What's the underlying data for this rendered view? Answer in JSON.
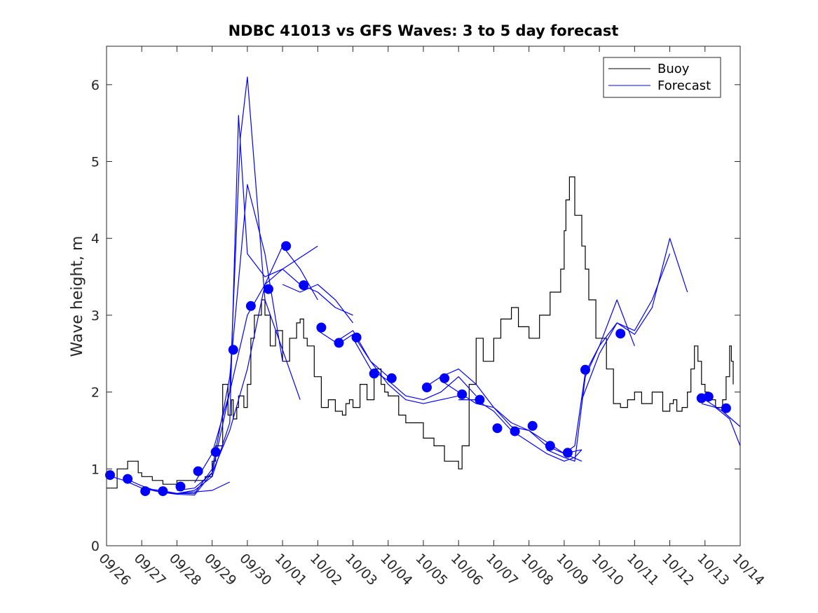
{
  "chart_data": {
    "type": "line",
    "title": "NDBC 41013 vs GFS Waves: 3 to 5 day forecast",
    "xlabel": "",
    "ylabel": "Wave height, m",
    "xlim": [
      0,
      18
    ],
    "ylim": [
      0,
      6.5
    ],
    "x_unit": "days since 09/26",
    "xtick_labels": [
      "09/26",
      "09/27",
      "09/28",
      "09/29",
      "09/30",
      "10/01",
      "10/02",
      "10/03",
      "10/04",
      "10/05",
      "10/06",
      "10/07",
      "10/08",
      "10/09",
      "10/10",
      "10/11",
      "10/12",
      "10/13",
      "10/14"
    ],
    "ytick_values": [
      0,
      1,
      2,
      3,
      4,
      5,
      6
    ],
    "ytick_labels": [
      "0",
      "1",
      "2",
      "3",
      "4",
      "5",
      "6"
    ],
    "legend_position": "top-right",
    "legend": [
      {
        "name": "Buoy",
        "color": "#000000"
      },
      {
        "name": "Forecast",
        "color": "#0000ff"
      }
    ],
    "buoy": {
      "name": "Buoy",
      "color": "#000000",
      "x": [
        0,
        0.3,
        0.6,
        0.9,
        1.0,
        1.3,
        1.6,
        2.0,
        2.4,
        2.8,
        3.0,
        3.1,
        3.3,
        3.45,
        3.55,
        3.6,
        3.7,
        3.75,
        3.9,
        4.0,
        4.1,
        4.2,
        4.4,
        4.5,
        4.65,
        4.8,
        5.0,
        5.2,
        5.4,
        5.5,
        5.6,
        5.7,
        5.9,
        6.1,
        6.3,
        6.5,
        6.7,
        6.8,
        6.9,
        7.0,
        7.2,
        7.4,
        7.6,
        7.8,
        7.9,
        8.0,
        8.3,
        8.5,
        8.8,
        9.0,
        9.3,
        9.6,
        10.0,
        10.1,
        10.3,
        10.5,
        10.7,
        11.0,
        11.2,
        11.5,
        11.7,
        12.0,
        12.3,
        12.6,
        12.9,
        13.0,
        13.05,
        13.15,
        13.3,
        13.5,
        13.6,
        13.7,
        13.9,
        14.2,
        14.4,
        14.6,
        14.8,
        15.0,
        15.2,
        15.5,
        15.8,
        16.0,
        16.1,
        16.2,
        16.35,
        16.5,
        16.6,
        16.7,
        16.8,
        16.9,
        17.0,
        17.1,
        17.3,
        17.5,
        17.6,
        17.7,
        17.75,
        17.8
      ],
      "y": [
        0.75,
        1.0,
        1.1,
        0.95,
        0.9,
        0.85,
        0.8,
        0.85,
        0.85,
        0.9,
        1.1,
        1.3,
        2.1,
        1.7,
        1.9,
        1.65,
        1.8,
        1.95,
        1.8,
        2.1,
        2.7,
        3.0,
        3.2,
        3.0,
        2.6,
        2.8,
        2.4,
        2.7,
        2.9,
        2.95,
        2.7,
        2.6,
        2.2,
        1.8,
        1.9,
        1.75,
        1.7,
        1.85,
        1.9,
        1.8,
        2.1,
        1.9,
        2.3,
        2.1,
        2.0,
        1.95,
        1.7,
        1.6,
        1.6,
        1.4,
        1.3,
        1.1,
        1.0,
        1.3,
        2.1,
        2.7,
        2.4,
        2.7,
        2.95,
        3.1,
        2.85,
        2.7,
        3.0,
        3.3,
        3.6,
        4.1,
        4.5,
        4.8,
        4.3,
        3.9,
        3.6,
        3.2,
        2.7,
        2.3,
        1.85,
        1.8,
        1.9,
        2.0,
        1.85,
        2.0,
        1.75,
        1.85,
        1.9,
        1.75,
        1.8,
        2.0,
        2.3,
        2.6,
        2.4,
        2.1,
        2.0,
        1.9,
        1.8,
        1.9,
        2.2,
        2.6,
        2.4,
        2.1
      ]
    },
    "forecast_lines": [
      {
        "x": [
          0,
          0.5,
          1,
          1.5,
          2,
          2.5,
          3,
          3.5
        ],
        "y": [
          0.92,
          0.85,
          0.75,
          0.72,
          0.68,
          0.7,
          0.72,
          0.83
        ]
      },
      {
        "x": [
          0.5,
          1,
          1.5,
          2,
          2.5,
          3,
          3.5,
          4,
          4.5,
          5
        ],
        "y": [
          0.88,
          0.78,
          0.7,
          0.68,
          0.68,
          1.0,
          2.2,
          4.7,
          3.8,
          2.4
        ]
      },
      {
        "x": [
          1,
          1.5,
          2,
          2.5,
          3,
          3.5,
          3.8,
          4,
          4.5,
          5.5
        ],
        "y": [
          0.75,
          0.7,
          0.67,
          0.66,
          0.95,
          2.0,
          5.3,
          6.1,
          3.2,
          1.9
        ]
      },
      {
        "x": [
          1.5,
          2,
          2.5,
          3,
          3.5,
          3.75,
          4,
          4.5,
          5,
          6
        ],
        "y": [
          0.72,
          0.68,
          0.72,
          0.9,
          1.6,
          5.6,
          3.8,
          3.5,
          3.6,
          3.9
        ]
      },
      {
        "x": [
          2,
          2.5,
          3,
          3.5,
          4,
          4.5,
          5,
          5.5,
          6
        ],
        "y": [
          0.72,
          0.75,
          0.95,
          1.5,
          2.3,
          3.4,
          3.9,
          3.6,
          3.2
        ]
      },
      {
        "x": [
          2.5,
          3,
          3.5,
          4,
          4.5,
          5,
          5.5,
          6,
          6.5,
          7
        ],
        "y": [
          0.82,
          1.2,
          2.0,
          3.0,
          3.4,
          3.6,
          3.4,
          3.3,
          3.1,
          3.0
        ]
      },
      {
        "x": [
          5,
          5.5,
          6,
          6.5,
          7
        ],
        "y": [
          3.4,
          3.3,
          3.4,
          3.2,
          2.9
        ]
      },
      {
        "x": [
          6,
          6.5,
          7,
          7.5,
          8
        ],
        "y": [
          2.8,
          2.65,
          2.8,
          2.4,
          2.2
        ]
      },
      {
        "x": [
          6.5,
          7,
          7.5,
          8,
          8.5,
          9,
          9.5,
          10
        ],
        "y": [
          2.6,
          2.75,
          2.4,
          2.1,
          1.9,
          1.85,
          1.9,
          1.95
        ]
      },
      {
        "x": [
          7,
          7.5,
          8,
          8.5,
          9,
          9.5,
          10,
          10.5
        ],
        "y": [
          2.7,
          2.3,
          2.15,
          1.95,
          1.9,
          2.0,
          2.2,
          1.95
        ]
      },
      {
        "x": [
          9,
          9.5,
          10,
          10.5,
          11,
          11.5,
          12,
          12.5,
          13,
          13.5
        ],
        "y": [
          2.05,
          2.2,
          2.3,
          2.1,
          1.8,
          1.6,
          1.5,
          1.35,
          1.2,
          1.1
        ]
      },
      {
        "x": [
          9.5,
          10,
          10.5,
          11,
          11.5,
          12,
          12.5,
          13,
          13.5
        ],
        "y": [
          2.15,
          2.0,
          1.85,
          1.8,
          1.55,
          1.5,
          1.3,
          1.2,
          1.25
        ]
      },
      {
        "x": [
          10,
          10.5,
          11,
          11.5,
          12,
          12.5,
          13,
          13.3,
          13.5
        ],
        "y": [
          1.9,
          1.9,
          1.75,
          1.5,
          1.35,
          1.2,
          1.1,
          1.15,
          1.25
        ]
      },
      {
        "x": [
          12.5,
          13,
          13.3,
          13.6,
          14,
          14.5,
          15
        ],
        "y": [
          1.25,
          1.15,
          1.1,
          2.2,
          2.6,
          3.2,
          2.6
        ]
      },
      {
        "x": [
          13,
          13.3,
          13.6,
          14,
          14.5,
          15,
          15.5,
          16
        ],
        "y": [
          1.2,
          1.3,
          2.25,
          2.6,
          2.9,
          2.8,
          3.2,
          3.8
        ]
      },
      {
        "x": [
          13.5,
          14,
          14.5,
          15,
          15.5,
          16,
          16.5
        ],
        "y": [
          1.9,
          2.5,
          2.9,
          2.75,
          3.1,
          4.0,
          3.3
        ]
      },
      {
        "x": [
          17,
          17.5,
          18
        ],
        "y": [
          1.9,
          1.75,
          1.55
        ]
      },
      {
        "x": [
          16.9,
          17.3,
          17.7,
          18
        ],
        "y": [
          1.85,
          1.8,
          1.65,
          1.3
        ]
      }
    ],
    "forecast_points": {
      "x": [
        0.1,
        0.6,
        1.1,
        1.6,
        2.1,
        2.6,
        3.1,
        3.6,
        4.1,
        4.6,
        5.1,
        5.6,
        6.1,
        6.6,
        7.1,
        7.6,
        8.1,
        9.1,
        9.6,
        10.1,
        10.6,
        11.1,
        11.6,
        12.1,
        12.6,
        13.1,
        13.6,
        14.6,
        16.9,
        17.1,
        17.6
      ],
      "y": [
        0.92,
        0.87,
        0.71,
        0.71,
        0.77,
        0.97,
        1.22,
        2.55,
        3.12,
        3.34,
        3.9,
        3.39,
        2.84,
        2.64,
        2.71,
        2.24,
        2.18,
        2.06,
        2.18,
        1.97,
        1.9,
        1.53,
        1.49,
        1.56,
        1.3,
        1.21,
        2.29,
        2.76,
        1.92,
        1.94,
        1.79
      ]
    }
  }
}
